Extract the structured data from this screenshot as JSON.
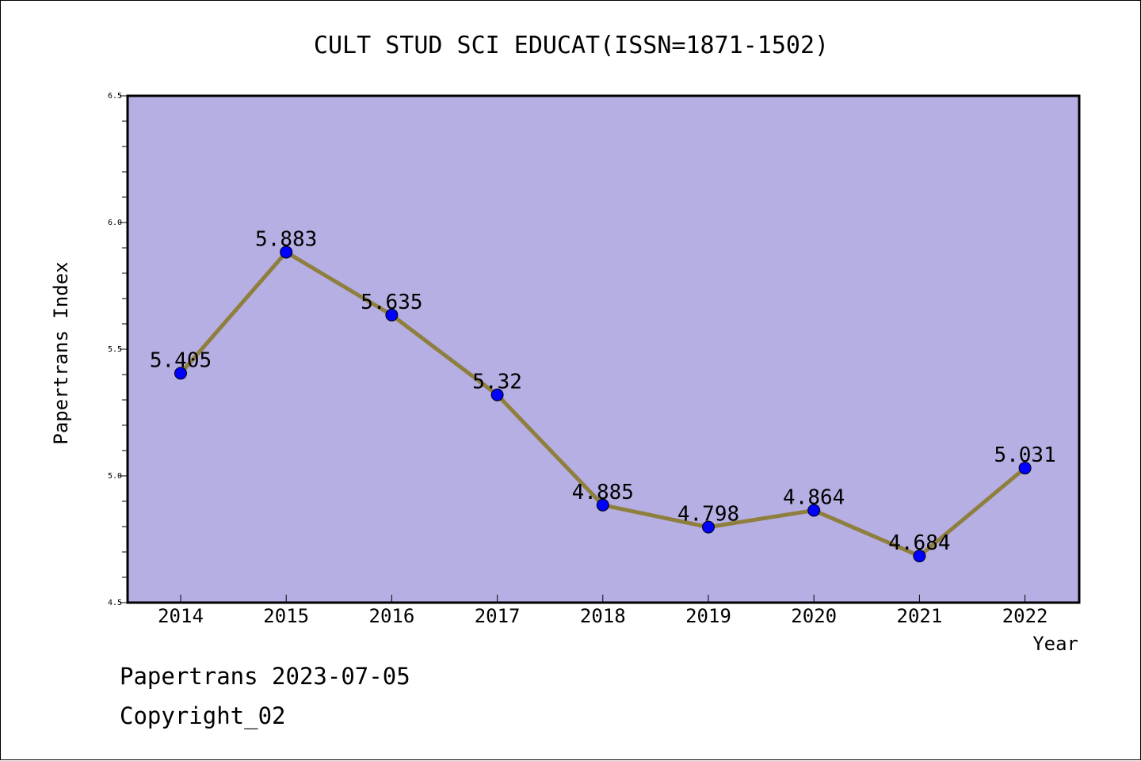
{
  "chart_data": {
    "type": "line",
    "title": "CULT STUD SCI EDUCAT(ISSN=1871-1502)",
    "xlabel": "Year",
    "ylabel": "Papertrans Index",
    "x": [
      "2014",
      "2015",
      "2016",
      "2017",
      "2018",
      "2019",
      "2020",
      "2021",
      "2022"
    ],
    "series": [
      {
        "values": [
          5.405,
          5.883,
          5.635,
          5.32,
          4.885,
          4.798,
          4.864,
          4.684,
          5.031
        ],
        "labels": [
          "5.405",
          "5.883",
          "5.635",
          "5.32",
          "4.885",
          "4.798",
          "4.864",
          "4.684",
          "5.031"
        ]
      }
    ],
    "ylim": [
      4.5,
      6.5
    ],
    "yticks": [
      "4.5",
      "5.0",
      "5.5",
      "6.0",
      "6.5"
    ],
    "grid": false,
    "legend": "none",
    "colors": {
      "plot_background": "#b5afe3",
      "line": "#8f7f3e",
      "marker": "#0000ff"
    }
  },
  "footer": {
    "line1": "Papertrans 2023-07-05",
    "line2": "Copyright_02"
  }
}
